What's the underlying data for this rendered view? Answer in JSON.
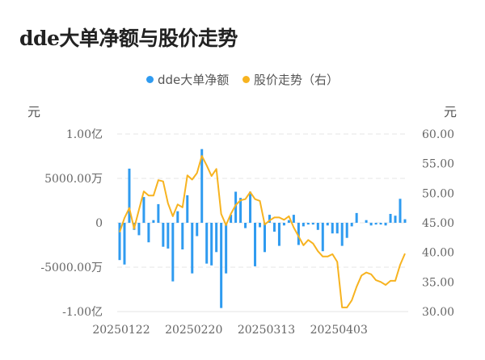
{
  "title": "dde大单净额与股价走势",
  "legend": [
    {
      "label": "dde大单净额",
      "color": "#2f9bf0"
    },
    {
      "label": "股价走势（右）",
      "color": "#f7b320"
    }
  ],
  "units": {
    "left": "元",
    "right": "元"
  },
  "chart_data": {
    "type": "bar+line",
    "title": "dde大单净额与股价走势",
    "xlabel": "",
    "ylabel_left": "元",
    "ylabel_right": "元",
    "left_axis": {
      "ticks": [
        "1.00亿",
        "5000.00万",
        "0",
        "-5000.00万",
        "-1.00亿"
      ],
      "values": [
        10000,
        5000,
        0,
        -5000,
        -10000
      ],
      "unit": "万元",
      "ylim": [
        -10000,
        10000
      ]
    },
    "right_axis": {
      "ticks": [
        "60.00",
        "55.00",
        "50.00",
        "45.00",
        "40.00",
        "35.00",
        "30.00"
      ],
      "ylim": [
        30,
        60
      ]
    },
    "x_tick_labels": [
      {
        "label": "20250122",
        "index": 0
      },
      {
        "label": "20250220",
        "index": 15
      },
      {
        "label": "20250313",
        "index": 30
      },
      {
        "label": "20250403",
        "index": 45
      }
    ],
    "grid": true,
    "legend_position": "top",
    "series": [
      {
        "name": "dde大单净额",
        "type": "bar",
        "axis": "left",
        "unit": "万元",
        "values": [
          -4200,
          -4700,
          6100,
          -800,
          -1400,
          2900,
          -2200,
          300,
          2100,
          -2700,
          -2900,
          -6600,
          1300,
          -3000,
          3100,
          -5700,
          -1500,
          8300,
          -4600,
          -4800,
          -3300,
          -9600,
          -5700,
          900,
          3500,
          2800,
          -600,
          3500,
          -4900,
          -500,
          -3300,
          900,
          -1000,
          -2600,
          -300,
          300,
          900,
          -2500,
          -400,
          -200,
          -200,
          -800,
          -3200,
          -300,
          -1200,
          -1200,
          -2600,
          -1700,
          -400,
          1100,
          0,
          300,
          -300,
          -200,
          -200,
          -300,
          1000,
          800,
          2700,
          400
        ]
      },
      {
        "name": "股价走势（右）",
        "type": "line",
        "axis": "right",
        "values": [
          43.4,
          45.8,
          47.5,
          44.0,
          47.2,
          50.3,
          49.6,
          49.6,
          52.2,
          52.0,
          48.3,
          46.1,
          48.1,
          47.6,
          53.0,
          52.3,
          53.4,
          56.3,
          54.7,
          52.9,
          54.1,
          46.5,
          44.6,
          46.5,
          48.0,
          48.8,
          49.0,
          50.2,
          49.0,
          48.7,
          44.7,
          45.4,
          45.9,
          45.9,
          45.5,
          46.1,
          44.2,
          42.7,
          41.2,
          42.1,
          41.5,
          40.2,
          39.3,
          39.3,
          39.7,
          38.4,
          30.7,
          30.7,
          31.9,
          34.2,
          36.1,
          36.6,
          36.3,
          35.3,
          35.0,
          34.5,
          35.2,
          35.2,
          37.9,
          39.8
        ]
      }
    ]
  }
}
